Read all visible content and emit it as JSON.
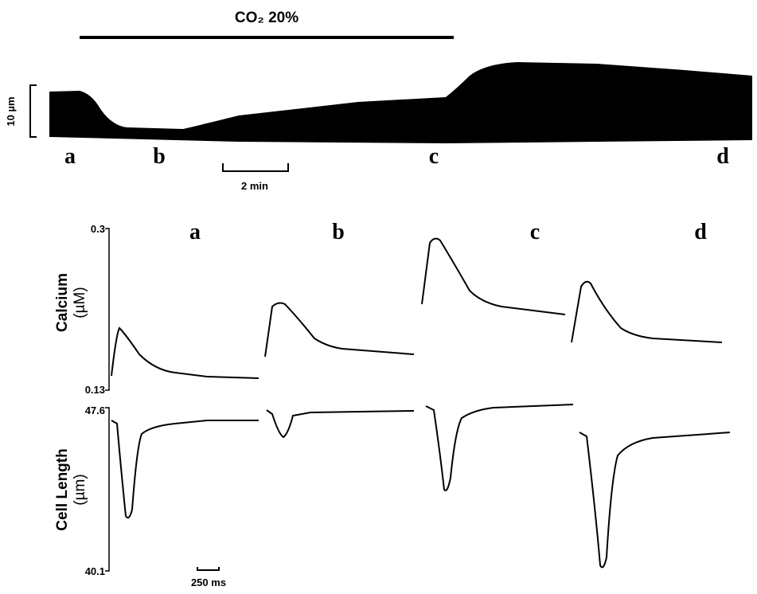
{
  "top_trace": {
    "stimulus_label": "CO₂ 20%",
    "scale_bar_y": "10 µm",
    "scale_bar_x": "2 min",
    "time_points": [
      "a",
      "b",
      "c",
      "d"
    ]
  },
  "bottom_traces": {
    "panel_labels": [
      "a",
      "b",
      "c",
      "d"
    ],
    "calcium": {
      "label": "Calcium",
      "unit": "(µM)",
      "max": 0.3,
      "min": 0.13
    },
    "cell_length": {
      "label": "Cell Length",
      "unit": "(µm)",
      "max": 47.6,
      "min": 40.1
    },
    "scale_bar_x": "250 ms"
  }
}
